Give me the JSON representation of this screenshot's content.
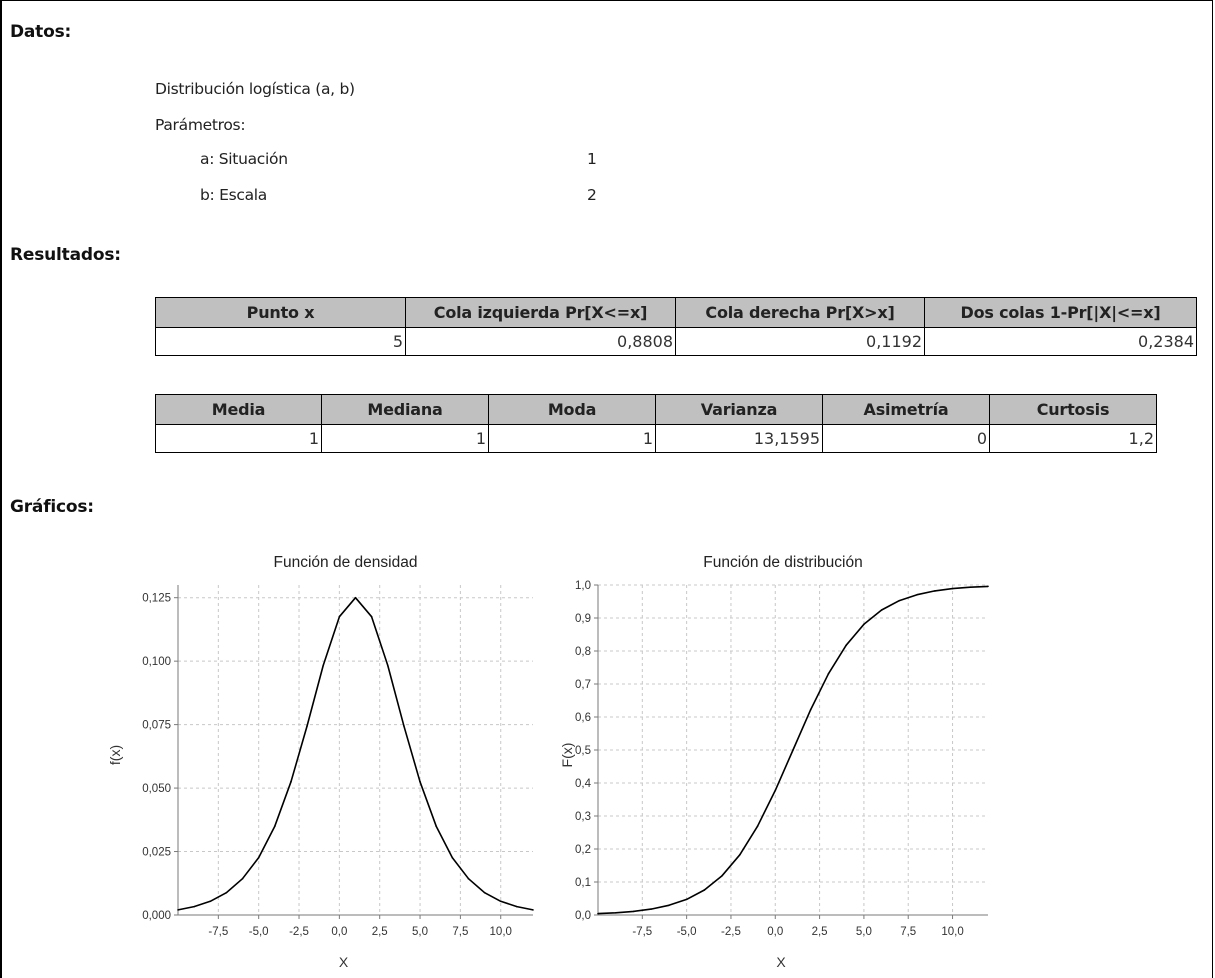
{
  "datos": {
    "heading": "Datos:",
    "distribution": "Distribución logística (a, b)",
    "params_label": "Parámetros:",
    "params": [
      {
        "label": "a: Situación",
        "value": "1"
      },
      {
        "label": "b: Escala",
        "value": "2"
      }
    ]
  },
  "resultados": {
    "heading": "Resultados:",
    "table1": {
      "headers": [
        "Punto x",
        "Cola izquierda Pr[X<=x]",
        "Cola derecha Pr[X>x]",
        "Dos colas 1-Pr[|X|<=x]"
      ],
      "values": [
        "5",
        "0,8808",
        "0,1192",
        "0,2384"
      ]
    },
    "table2": {
      "headers": [
        "Media",
        "Mediana",
        "Moda",
        "Varianza",
        "Asimetría",
        "Curtosis"
      ],
      "values": [
        "1",
        "1",
        "1",
        "13,1595",
        "0",
        "1,2"
      ]
    }
  },
  "graficos": {
    "heading": "Gráficos:"
  },
  "chart_data": [
    {
      "type": "line",
      "title": "Función de densidad",
      "xlabel": "X",
      "ylabel": "f(x)",
      "xlim": [
        -10,
        12
      ],
      "ylim": [
        0,
        0.13
      ],
      "x_ticks": [
        -7.5,
        -5.0,
        -2.5,
        0.0,
        2.5,
        5.0,
        7.5,
        10.0
      ],
      "x_tick_labels": [
        "-7,5",
        "-5,0",
        "-2,5",
        "0,0",
        "2,5",
        "5,0",
        "7,5",
        "10,0"
      ],
      "y_ticks": [
        0,
        0.025,
        0.05,
        0.075,
        0.1,
        0.125
      ],
      "y_tick_labels": [
        "0,000",
        "0,025",
        "0,050",
        "0,075",
        "0,100",
        "0,125"
      ],
      "grid": true,
      "series": [
        {
          "x": [
            -10,
            -9,
            -8,
            -7,
            -6,
            -5,
            -4,
            -3,
            -2,
            -1,
            0,
            1,
            2,
            3,
            4,
            5,
            6,
            7,
            8,
            9,
            10,
            11,
            12
          ],
          "y": [
            0.002,
            0.0033,
            0.0054,
            0.0088,
            0.0143,
            0.0226,
            0.035,
            0.0525,
            0.0745,
            0.0983,
            0.1175,
            0.125,
            0.1175,
            0.0983,
            0.0745,
            0.0525,
            0.035,
            0.0226,
            0.0143,
            0.0088,
            0.0054,
            0.0033,
            0.002
          ]
        }
      ]
    },
    {
      "type": "line",
      "title": "Función de distribución",
      "xlabel": "X",
      "ylabel": "F(x)",
      "xlim": [
        -10,
        12
      ],
      "ylim": [
        0,
        1
      ],
      "x_ticks": [
        -7.5,
        -5.0,
        -2.5,
        0.0,
        2.5,
        5.0,
        7.5,
        10.0
      ],
      "x_tick_labels": [
        "-7,5",
        "-5,0",
        "-2,5",
        "0,0",
        "2,5",
        "5,0",
        "7,5",
        "10,0"
      ],
      "y_ticks": [
        0,
        0.1,
        0.2,
        0.3,
        0.4,
        0.5,
        0.6,
        0.7,
        0.8,
        0.9,
        1.0
      ],
      "y_tick_labels": [
        "0,0",
        "0,1",
        "0,2",
        "0,3",
        "0,4",
        "0,5",
        "0,6",
        "0,7",
        "0,8",
        "0,9",
        "1,0"
      ],
      "grid": true,
      "series": [
        {
          "x": [
            -10,
            -9,
            -8,
            -7,
            -6,
            -5,
            -4,
            -3,
            -2,
            -1,
            0,
            1,
            2,
            3,
            4,
            5,
            6,
            7,
            8,
            9,
            10,
            11,
            12
          ],
          "y": [
            0.0041,
            0.0067,
            0.011,
            0.018,
            0.0293,
            0.0474,
            0.0759,
            0.1192,
            0.1824,
            0.2689,
            0.3775,
            0.5,
            0.6225,
            0.7311,
            0.8176,
            0.8808,
            0.9241,
            0.9526,
            0.9707,
            0.982,
            0.989,
            0.9933,
            0.9959
          ]
        }
      ]
    }
  ]
}
